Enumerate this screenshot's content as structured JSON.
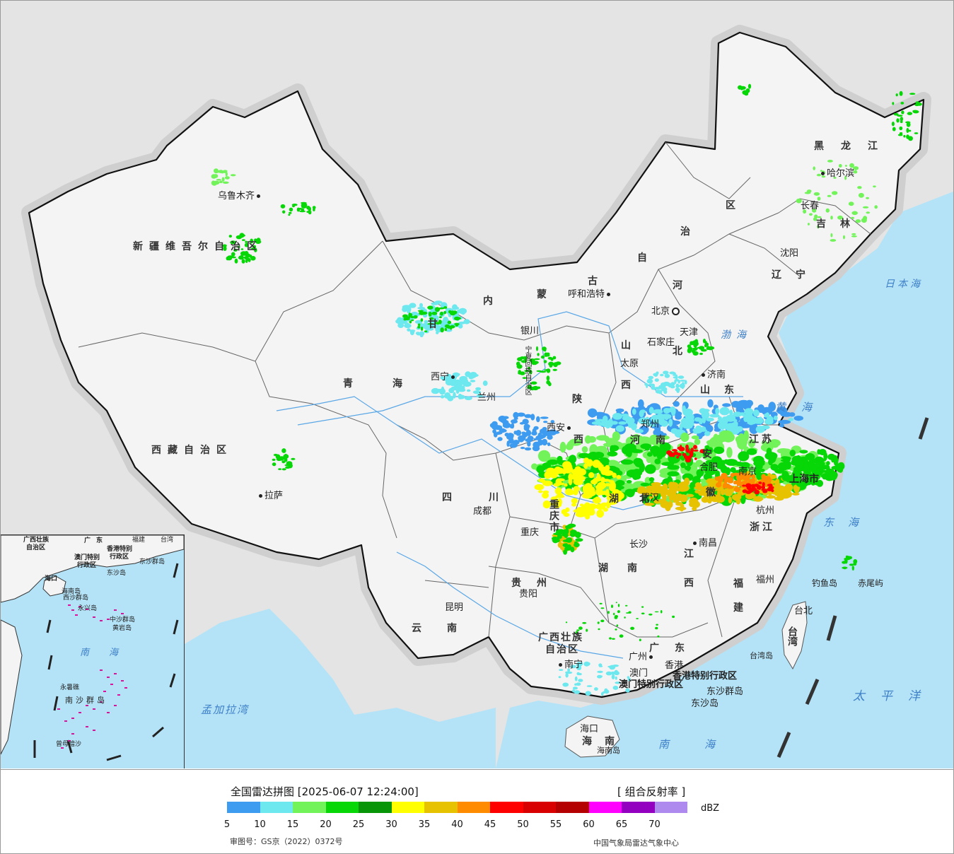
{
  "cities": [
    {
      "name": "乌鲁木齐"
    },
    {
      "name": "拉萨"
    },
    {
      "name": "西宁"
    },
    {
      "name": "兰州"
    },
    {
      "name": "银川"
    },
    {
      "name": "呼和浩特"
    },
    {
      "name": "北京"
    },
    {
      "name": "天津"
    },
    {
      "name": "石家庄"
    },
    {
      "name": "太原"
    },
    {
      "name": "济南"
    },
    {
      "name": "郑州"
    },
    {
      "name": "西安"
    },
    {
      "name": "成都"
    },
    {
      "name": "重庆"
    },
    {
      "name": "武汉"
    },
    {
      "name": "合肥"
    },
    {
      "name": "南京"
    },
    {
      "name": "上海市"
    },
    {
      "name": "杭州"
    },
    {
      "name": "长沙"
    },
    {
      "name": "南昌"
    },
    {
      "name": "福州"
    },
    {
      "name": "台北"
    },
    {
      "name": "贵阳"
    },
    {
      "name": "昆明"
    },
    {
      "name": "南宁"
    },
    {
      "name": "广州"
    },
    {
      "name": "澳门"
    },
    {
      "name": "香港"
    },
    {
      "name": "海口"
    },
    {
      "name": "沈阳"
    },
    {
      "name": "长春"
    },
    {
      "name": "哈尔滨"
    }
  ],
  "provinces": [
    {
      "name": "新疆维吾尔自治区"
    },
    {
      "name": "西藏自治区"
    },
    {
      "name": "青海"
    },
    {
      "name": "甘"
    },
    {
      "name": "内"
    },
    {
      "name": "蒙"
    },
    {
      "name": "古"
    },
    {
      "name": "自"
    },
    {
      "name": "治"
    },
    {
      "name": "区"
    },
    {
      "name": "黑龙江"
    },
    {
      "name": "吉林"
    },
    {
      "name": "辽宁"
    },
    {
      "name": "河"
    },
    {
      "name": "北"
    },
    {
      "name": "山"
    },
    {
      "name": "西"
    },
    {
      "name": "山东"
    },
    {
      "name": "陕"
    },
    {
      "name": "西"
    },
    {
      "name": "河南"
    },
    {
      "name": "江苏"
    },
    {
      "name": "安"
    },
    {
      "name": "徽"
    },
    {
      "name": "湖"
    },
    {
      "name": "北"
    },
    {
      "name": "四川"
    },
    {
      "name": "重庆市"
    },
    {
      "name": "湖南"
    },
    {
      "name": "江"
    },
    {
      "name": "西"
    },
    {
      "name": "浙江"
    },
    {
      "name": "福"
    },
    {
      "name": "建"
    },
    {
      "name": "贵州"
    },
    {
      "name": "云南"
    },
    {
      "name": "广西壮族"
    },
    {
      "name": "自治区"
    },
    {
      "name": "广东"
    },
    {
      "name": "台湾"
    },
    {
      "name": "海南"
    },
    {
      "name": "宁夏回族自治区"
    }
  ],
  "seas": [
    {
      "name": "日本海"
    },
    {
      "name": "渤海"
    },
    {
      "name": "黄海"
    },
    {
      "name": "东海"
    },
    {
      "name": "太平洋"
    },
    {
      "name": "南海"
    },
    {
      "name": "孟加拉湾"
    }
  ],
  "special_labels": [
    {
      "name": "香港特别行政区"
    },
    {
      "name": "澳门特别行政区"
    },
    {
      "name": "东沙群岛"
    },
    {
      "name": "东沙岛"
    },
    {
      "name": "钓鱼岛"
    },
    {
      "name": "赤尾屿"
    },
    {
      "name": "台湾岛"
    },
    {
      "name": "海南岛"
    }
  ],
  "inset": {
    "labels": [
      {
        "name": "广西壮族"
      },
      {
        "name": "自治区"
      },
      {
        "name": "广东"
      },
      {
        "name": "福建"
      },
      {
        "name": "台湾"
      },
      {
        "name": "香港特别"
      },
      {
        "name": "行政区"
      },
      {
        "name": "澳门特别"
      },
      {
        "name": "行政区"
      },
      {
        "name": "东沙群岛"
      },
      {
        "name": "东沙岛"
      },
      {
        "name": "海口"
      },
      {
        "name": "海南岛"
      },
      {
        "name": "西沙群岛"
      },
      {
        "name": "永兴岛"
      },
      {
        "name": "中沙群岛"
      },
      {
        "name": "黄岩岛"
      },
      {
        "name": "南海"
      },
      {
        "name": "永暑礁"
      },
      {
        "name": "南沙群岛"
      },
      {
        "name": "曾母暗沙"
      }
    ]
  },
  "legend": {
    "title": "全国雷达拼图 [2025-06-07 12:24:00]",
    "product": "[ 组合反射率 ]",
    "unit": "dBZ",
    "colors": [
      "#3d9bf0",
      "#6de8ef",
      "#72f35a",
      "#07d607",
      "#089608",
      "#ffff00",
      "#e6c200",
      "#ff8c00",
      "#ff0000",
      "#d80000",
      "#b40000",
      "#ff00ff",
      "#9400c0",
      "#ae8aef"
    ],
    "ticks": [
      "5",
      "10",
      "15",
      "20",
      "25",
      "30",
      "35",
      "40",
      "45",
      "50",
      "55",
      "60",
      "65",
      "70"
    ],
    "review_number": "审图号：GS京（2022）0372号",
    "publisher": "中国气象局雷达气象中心"
  }
}
